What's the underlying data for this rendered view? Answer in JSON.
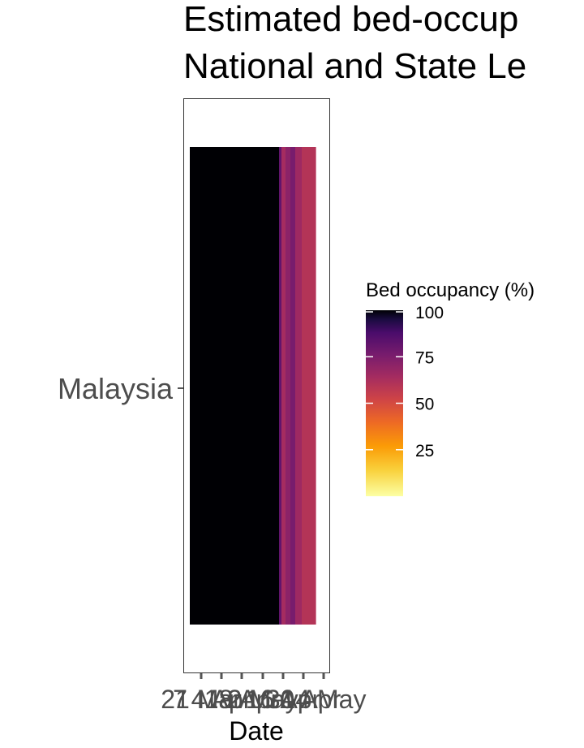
{
  "chart_data": {
    "type": "heatmap",
    "title_lines": [
      "Estimated bed-occup",
      "National and State Le"
    ],
    "xlabel": "Date",
    "y_categories": [
      "Malaysia"
    ],
    "x_tick_labels": [
      "7",
      "21 Mar",
      "4 Apr",
      "18 Apr",
      "2 May",
      "16 Apr",
      "30 Apr",
      "14 May"
    ],
    "legend": {
      "title": "Bed occupancy (%)",
      "ticks": [
        25,
        50,
        75,
        100
      ],
      "range": [
        0,
        100
      ],
      "placement": "right",
      "palette": "inferno (reversed)"
    },
    "cells": [
      {
        "row": "Malaysia",
        "segment": 0,
        "value": 100
      },
      {
        "row": "Malaysia",
        "segment": 1,
        "value": 100
      },
      {
        "row": "Malaysia",
        "segment": 2,
        "value": 100
      },
      {
        "row": "Malaysia",
        "segment": 3,
        "value": 100
      },
      {
        "row": "Malaysia",
        "segment": 4,
        "value": 100
      },
      {
        "row": "Malaysia",
        "segment": 5,
        "value": 82
      },
      {
        "row": "Malaysia",
        "segment": 6,
        "value": 64
      },
      {
        "row": "Malaysia",
        "segment": 7,
        "value": 71
      },
      {
        "row": "Malaysia",
        "segment": 8,
        "value": 76
      },
      {
        "row": "Malaysia",
        "segment": 9,
        "value": 66
      },
      {
        "row": "Malaysia",
        "segment": 10,
        "value": 60
      }
    ],
    "grid": false
  },
  "colors": {
    "panel_border": "#333333",
    "axis_text": "#4d4d4d",
    "title": "#000000",
    "tick": "#555555"
  }
}
